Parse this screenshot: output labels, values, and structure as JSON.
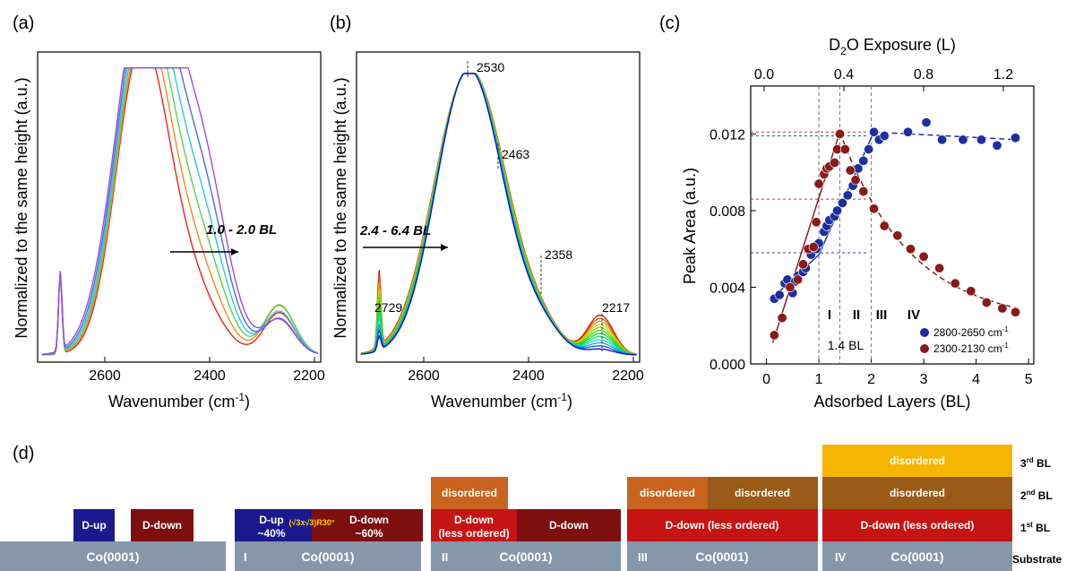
{
  "colors": {
    "dup": "#1a1a8e",
    "ddown_dark": "#7d0f0f",
    "ddown_red": "#c61414",
    "disordered_orange": "#c8641e",
    "disordered_brown": "#9a5a18",
    "disordered_yellow": "#f6b500",
    "substrate": "#8797ab",
    "series_blue": "#1f2f9f",
    "series_red": "#8b1a1a"
  },
  "panel_a": {
    "label": "(a)",
    "ylabel": "Normalized to the same height (a.u.)",
    "xlabel": "Wavenumber (cm",
    "xlabel_sup": "-1",
    "xlabel_end": ")",
    "xticks": [
      "2600",
      "2400",
      "2200"
    ],
    "annotation": "1.0 - 2.0 BL"
  },
  "panel_b": {
    "label": "(b)",
    "ylabel": "Normalized to the same height (a.u.)",
    "xlabel": "Wavenumber (cm",
    "xlabel_sup": "-1",
    "xlabel_end": ")",
    "xticks": [
      "2600",
      "2400",
      "2200"
    ],
    "annotation": "2.4 - 6.4 BL",
    "peak_labels": [
      "2530",
      "2463",
      "2358",
      "2217",
      "2729"
    ]
  },
  "chart_data": [
    {
      "type": "line",
      "panel": "a",
      "xlabel": "Wavenumber (cm-1)",
      "ylabel": "Normalized to the same height (a.u.)",
      "xlim": [
        2780,
        2130
      ],
      "x_reversed": true,
      "annotation": "1.0 - 2.0 BL",
      "series_colors": [
        "#e8231f",
        "#f58a1d",
        "#5bd14b",
        "#28c8e8",
        "#4b6be0",
        "#a24bd8"
      ]
    },
    {
      "type": "line",
      "panel": "b",
      "xlabel": "Wavenumber (cm-1)",
      "ylabel": "Normalized to the same height (a.u.)",
      "xlim": [
        2780,
        2130
      ],
      "x_reversed": true,
      "annotation": "2.4 - 6.4 BL",
      "peaks": [
        2729,
        2530,
        2463,
        2358,
        2217
      ]
    },
    {
      "type": "scatter",
      "panel": "c",
      "xlabel": "Adsorbed Layers (BL)",
      "ylabel": "Peak Area (a.u.)",
      "top_xlabel": "D2O Exposure (L)",
      "xlim": [
        -0.3,
        5.1
      ],
      "ylim": [
        0.0,
        0.0145
      ],
      "xticks": [
        0,
        1,
        2,
        3,
        4,
        5
      ],
      "yticks": [
        0.0,
        0.004,
        0.008,
        0.012
      ],
      "top_xticks": [
        0.0,
        0.4,
        0.8,
        1.2
      ],
      "regions": [
        "I",
        "II",
        "III",
        "IV"
      ],
      "region_boundaries": [
        1.0,
        1.4,
        2.0
      ],
      "annotation": "1.4 BL",
      "series": [
        {
          "name": "2800-2650 cm-1",
          "x": [
            0.15,
            0.25,
            0.35,
            0.4,
            0.5,
            0.55,
            0.6,
            0.7,
            0.75,
            0.85,
            0.95,
            1.0,
            1.1,
            1.15,
            1.2,
            1.3,
            1.35,
            1.45,
            1.55,
            1.65,
            1.75,
            1.85,
            1.95,
            2.05,
            2.15,
            2.25,
            2.7,
            3.05,
            3.35,
            3.75,
            4.1,
            4.4,
            4.75
          ],
          "y": [
            0.0034,
            0.0036,
            0.0042,
            0.0044,
            0.0037,
            0.0043,
            0.0046,
            0.0048,
            0.005,
            0.0057,
            0.006,
            0.0063,
            0.0069,
            0.0072,
            0.0075,
            0.0077,
            0.008,
            0.0084,
            0.0088,
            0.0093,
            0.0102,
            0.0106,
            0.0112,
            0.0121,
            0.0117,
            0.0119,
            0.0121,
            0.0126,
            0.0117,
            0.0117,
            0.0117,
            0.0114,
            0.0118
          ]
        },
        {
          "name": "2300-2130 cm-1",
          "x": [
            0.15,
            0.3,
            0.45,
            0.6,
            0.7,
            0.8,
            0.9,
            0.95,
            1.0,
            1.1,
            1.15,
            1.2,
            1.3,
            1.35,
            1.4,
            1.5,
            1.6,
            1.7,
            1.85,
            2.05,
            2.25,
            2.5,
            2.75,
            3.0,
            3.3,
            3.6,
            3.9,
            4.2,
            4.5,
            4.75
          ],
          "y": [
            0.0015,
            0.0024,
            0.004,
            0.0044,
            0.0052,
            0.006,
            0.0061,
            0.0074,
            0.0094,
            0.0099,
            0.0102,
            0.0103,
            0.0105,
            0.0112,
            0.012,
            0.0112,
            0.0101,
            0.0096,
            0.009,
            0.0081,
            0.0072,
            0.0067,
            0.006,
            0.0056,
            0.005,
            0.0042,
            0.0038,
            0.0032,
            0.0029,
            0.0027
          ]
        }
      ]
    }
  ],
  "panel_c": {
    "label": "(c)",
    "top_xlabel_pre": "D",
    "top_xlabel_sub": "2",
    "top_xlabel_post": "O Exposure (L)",
    "top_xticks": [
      "0.0",
      "0.4",
      "0.8",
      "1.2"
    ],
    "ylabel": "Peak Area (a.u.)",
    "xlabel": "Adsorbed Layers (BL)",
    "xticks": [
      "0",
      "1",
      "2",
      "3",
      "4",
      "5"
    ],
    "yticks": [
      "0.000",
      "0.004",
      "0.008",
      "0.012"
    ],
    "regions": [
      "I",
      "II",
      "III",
      "IV"
    ],
    "annotation": "1.4 BL",
    "legend": [
      {
        "label": "2800-2650 cm",
        "sup": "-1"
      },
      {
        "label": "2300-2130 cm",
        "sup": "-1"
      }
    ]
  },
  "panel_d": {
    "label": "(d)",
    "substrate_text": "Co(0001)",
    "stages": [
      "I",
      "II",
      "III",
      "IV"
    ],
    "boxes": {
      "s0_dup": "D-up",
      "s0_ddown": "D-down",
      "s1_dup": "D-up",
      "s1_dup_pct": "~40%",
      "s1_mid": "(√3x√3)R30°",
      "s1_ddown": "D-down",
      "s1_ddown_pct": "~60%",
      "s2_disordered": "disordered",
      "s2_ddown_less_1": "D-down",
      "s2_ddown_less_2": "(less ordered)",
      "s2_ddown": "D-down",
      "s3_dis1": "disordered",
      "s3_dis2": "disordered",
      "s3_ddown": "D-down (less ordered)",
      "s4_dis3": "disordered",
      "s4_dis2": "disordered",
      "s4_ddown": "D-down (less ordered)"
    },
    "layer_labels": [
      {
        "num": "3",
        "sup": "rd",
        "rest": " BL"
      },
      {
        "num": "2",
        "sup": "nd",
        "rest": " BL"
      },
      {
        "num": "1",
        "sup": "st",
        "rest": " BL"
      }
    ],
    "substrate_label": "Substrate"
  }
}
